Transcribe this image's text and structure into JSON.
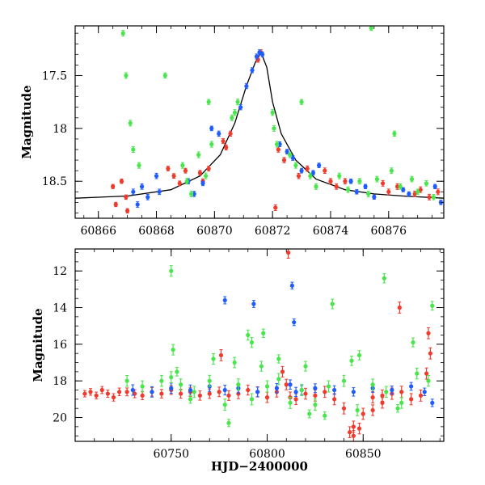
{
  "chart_data": [
    {
      "type": "scatter",
      "title": "",
      "xlabel": "",
      "ylabel": "Magnitude",
      "xlim": [
        60865.2,
        60877.9
      ],
      "ylim": [
        18.85,
        17.03
      ],
      "y_inverted": true,
      "x_ticks": [
        60866,
        60868,
        60870,
        60872,
        60874,
        60876
      ],
      "x_tick_labels": [
        "60866",
        "60868",
        "60870",
        "60872",
        "60874",
        "60876"
      ],
      "y_ticks": [
        17.5,
        18,
        18.5
      ],
      "y_tick_labels": [
        "17.5",
        "18",
        "18.5"
      ],
      "grid": false,
      "model_curve": {
        "style": "solid black line",
        "x": [
          60865.2,
          60867.0,
          60868.5,
          60869.5,
          60870.2,
          60870.7,
          60871.1,
          60871.4,
          60871.6,
          60871.8,
          60872.0,
          60872.3,
          60872.8,
          60873.5,
          60874.5,
          60875.5,
          60876.5,
          60877.9
        ],
        "y": [
          18.66,
          18.64,
          18.58,
          18.45,
          18.25,
          17.95,
          17.6,
          17.38,
          17.28,
          17.42,
          17.75,
          18.05,
          18.3,
          18.48,
          18.58,
          18.62,
          18.64,
          18.66
        ]
      },
      "series": [
        {
          "color": "#ef3a2c",
          "x": [
            60866.5,
            60866.6,
            60866.8,
            60866.95,
            60867.0,
            60868.4,
            60868.6,
            60868.8,
            60869.0,
            60869.5,
            60869.6,
            60869.8,
            60870.3,
            60870.4,
            60870.55,
            60871.5,
            60871.6,
            60872.2,
            60872.4,
            60872.9,
            60873.2,
            60873.8,
            60874.0,
            60874.2,
            60874.5,
            60875.8,
            60876.0,
            60876.3,
            60876.9,
            60877.1,
            60877.4,
            60877.7,
            60872.1
          ],
          "y": [
            18.55,
            18.72,
            18.5,
            18.65,
            18.78,
            18.38,
            18.45,
            18.52,
            18.4,
            18.42,
            18.5,
            18.38,
            18.12,
            18.18,
            18.05,
            17.35,
            17.28,
            18.2,
            18.3,
            18.45,
            18.38,
            18.4,
            18.5,
            18.55,
            18.5,
            18.52,
            18.6,
            18.55,
            18.62,
            18.58,
            18.65,
            18.6,
            18.75
          ]
        },
        {
          "color": "#1f5bff",
          "x": [
            60867.2,
            60867.35,
            60867.5,
            60867.7,
            60868.0,
            60868.1,
            60869.1,
            60869.3,
            60870.15,
            60870.9,
            60871.1,
            60871.3,
            60871.45,
            60871.55,
            60871.65,
            60872.25,
            60872.5,
            60872.7,
            60873.4,
            60873.6,
            60874.7,
            60874.9,
            60875.2,
            60875.5,
            60876.5,
            60876.7,
            60877.6,
            60877.8,
            60869.6,
            60869.9,
            60873.0
          ],
          "y": [
            18.6,
            18.72,
            18.55,
            18.65,
            18.45,
            18.6,
            18.5,
            18.62,
            18.05,
            17.8,
            17.6,
            17.45,
            17.32,
            17.28,
            17.3,
            18.15,
            18.22,
            18.28,
            18.42,
            18.35,
            18.5,
            18.6,
            18.55,
            18.65,
            18.58,
            18.62,
            18.55,
            18.7,
            18.52,
            18.0,
            18.4
          ]
        },
        {
          "color": "#48e64a",
          "x": [
            60866.85,
            60866.95,
            60867.1,
            60867.2,
            60867.4,
            60868.9,
            60869.05,
            60869.2,
            60869.45,
            60869.7,
            60869.9,
            60870.6,
            60870.7,
            60870.8,
            60872.0,
            60872.05,
            60872.15,
            60872.6,
            60872.8,
            60873.3,
            60873.5,
            60874.3,
            60874.6,
            60875.0,
            60875.3,
            60875.6,
            60876.1,
            60876.4,
            60876.8,
            60877.0,
            60877.3,
            60877.55,
            60868.3,
            60869.8,
            60873.0,
            60876.2,
            60875.4
          ],
          "y": [
            17.1,
            17.5,
            17.95,
            18.2,
            18.35,
            18.35,
            18.5,
            18.62,
            18.25,
            18.45,
            18.15,
            17.9,
            17.85,
            17.75,
            17.85,
            18.0,
            18.15,
            18.25,
            18.35,
            18.45,
            18.55,
            18.45,
            18.58,
            18.5,
            18.62,
            18.48,
            18.4,
            18.55,
            18.48,
            18.6,
            18.52,
            18.65,
            17.5,
            17.75,
            17.75,
            18.05,
            17.05
          ]
        }
      ]
    },
    {
      "type": "scatter",
      "title": "",
      "xlabel": "HJD−2400000",
      "ylabel": "Magnitude",
      "xlim": [
        60700,
        60892
      ],
      "ylim": [
        21.3,
        10.8
      ],
      "y_inverted": true,
      "x_ticks": [
        60750,
        60800,
        60850
      ],
      "x_tick_labels": [
        "60750",
        "60800",
        "60850"
      ],
      "y_ticks": [
        12,
        14,
        16,
        18,
        20
      ],
      "y_tick_labels": [
        "12",
        "14",
        "16",
        "18",
        "20"
      ],
      "grid": false,
      "series": [
        {
          "color": "#ef3a2c",
          "x": [
            60705,
            60708,
            60711,
            60714,
            60717,
            60720,
            60723,
            60727,
            60731,
            60735,
            60740,
            60745,
            60750,
            60755,
            60760,
            60765,
            60770,
            60775,
            60780,
            60785,
            60790,
            60795,
            60800,
            60805,
            60808,
            60810,
            60812,
            60815,
            60820,
            60825,
            60830,
            60835,
            60840,
            60845,
            60850,
            60855,
            60860,
            60865,
            60870,
            60875,
            60880,
            60883,
            60885,
            60811,
            60776,
            60869,
            60884,
            60843,
            60845,
            60848,
            60855,
            60860
          ],
          "y": [
            18.7,
            18.6,
            18.8,
            18.5,
            18.7,
            18.9,
            18.6,
            18.6,
            18.7,
            18.8,
            18.6,
            18.7,
            18.5,
            18.7,
            18.6,
            18.8,
            18.7,
            18.6,
            18.8,
            18.7,
            18.5,
            18.6,
            18.9,
            18.6,
            17.5,
            18.2,
            18.9,
            19.0,
            18.7,
            18.8,
            18.6,
            19.0,
            19.5,
            20.5,
            19.8,
            18.9,
            18.8,
            18.7,
            18.6,
            19.0,
            18.8,
            17.6,
            16.5,
            11.0,
            16.6,
            14.0,
            15.4,
            20.8,
            21.0,
            20.6,
            19.6,
            19.2
          ]
        },
        {
          "color": "#1f5bff",
          "x": [
            60730,
            60740,
            60750,
            60760,
            60770,
            60778,
            60785,
            60795,
            60805,
            60812,
            60815,
            60818,
            60825,
            60835,
            60845,
            60855,
            60865,
            60875,
            60882,
            60886,
            60778,
            60793,
            60813,
            60814
          ],
          "y": [
            18.5,
            18.6,
            18.4,
            18.5,
            18.3,
            18.5,
            18.4,
            18.6,
            18.4,
            18.2,
            18.6,
            18.5,
            18.4,
            18.5,
            18.6,
            18.4,
            18.5,
            18.3,
            18.6,
            19.2,
            13.6,
            13.8,
            12.8,
            14.8
          ]
        },
        {
          "color": "#48e64a",
          "x": [
            60727,
            60735,
            60745,
            60750,
            60755,
            60762,
            60770,
            60778,
            60785,
            60792,
            60800,
            60806,
            60812,
            60818,
            60825,
            60832,
            60840,
            60847,
            60855,
            60862,
            60870,
            60878,
            60884,
            60750,
            60751,
            60772,
            60783,
            60790,
            60792,
            60797,
            60820,
            60834,
            60844,
            60848,
            60861,
            60876,
            60886,
            60753,
            60798,
            60806,
            60760,
            60822,
            60868,
            60830,
            60780
          ],
          "y": [
            18.0,
            18.3,
            18.0,
            17.8,
            18.2,
            18.6,
            18.0,
            19.3,
            18.2,
            19.0,
            18.3,
            17.9,
            19.2,
            18.5,
            19.3,
            18.3,
            18.0,
            19.6,
            18.2,
            18.6,
            19.2,
            17.6,
            18.0,
            12.0,
            16.3,
            16.8,
            17.0,
            15.5,
            15.9,
            17.2,
            17.2,
            13.8,
            16.9,
            16.6,
            12.4,
            15.9,
            13.9,
            17.5,
            15.4,
            16.8,
            19.0,
            19.8,
            19.5,
            19.9,
            20.3
          ]
        }
      ]
    }
  ]
}
